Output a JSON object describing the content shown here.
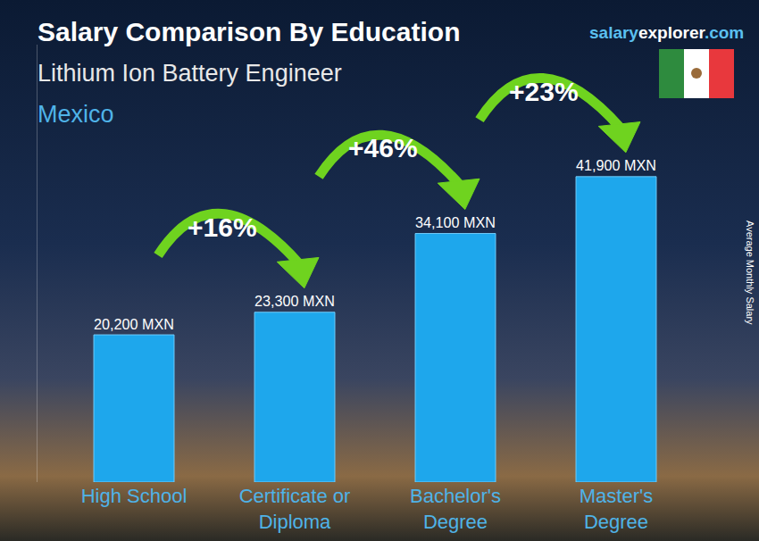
{
  "chart_data": {
    "type": "bar",
    "title": "Salary Comparison By Education",
    "subtitle": "Lithium Ion Battery Engineer",
    "location": "Mexico",
    "source": [
      "salary",
      "explorer",
      ".com"
    ],
    "y_label": "Average Monthly Salary",
    "categories": [
      "High School",
      "Certificate or Diploma",
      "Bachelor's Degree",
      "Master's Degree"
    ],
    "values": [
      20200,
      23300,
      34100,
      41900
    ],
    "value_labels": [
      "20,200 MXN",
      "23,300 MXN",
      "34,100 MXN",
      "41,900 MXN"
    ],
    "annotations": [
      "+16%",
      "+46%",
      "+23%"
    ],
    "color": "#1ea7ec",
    "ylim": [
      0,
      60000
    ],
    "yticks": [],
    "grid": false,
    "data_labels": true,
    "tick_labels": "x"
  }
}
